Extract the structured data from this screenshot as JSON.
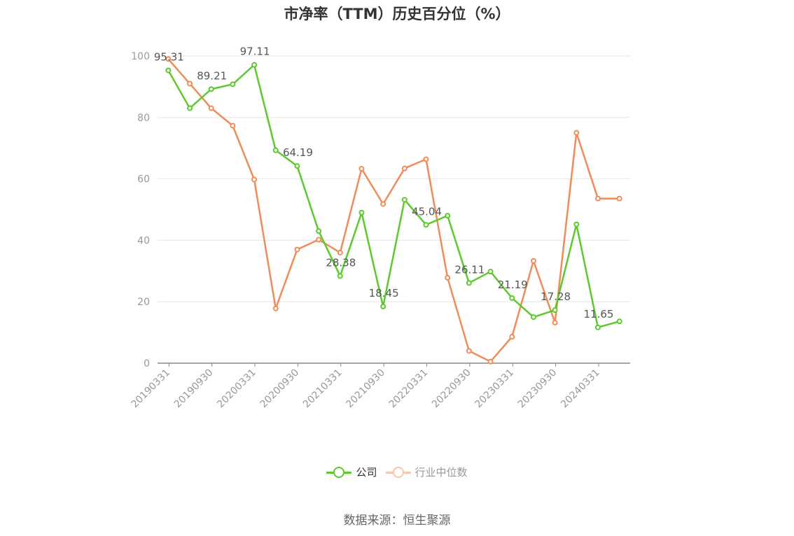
{
  "chart_data": {
    "type": "line",
    "title": "市净率（TTM）历史百分位（%）",
    "ylim": [
      0,
      100
    ],
    "yticks": [
      0,
      20,
      40,
      60,
      80,
      100
    ],
    "x": [
      "20190331",
      "20190630",
      "20190930",
      "20191231",
      "20200331",
      "20200630",
      "20200930",
      "20201231",
      "20210331",
      "20210630",
      "20210930",
      "20211231",
      "20220331",
      "20220630",
      "20220930",
      "20221231",
      "20230331",
      "20230630",
      "20230930",
      "20231231",
      "20240331",
      "20240630"
    ],
    "xtick_labels": [
      "20190331",
      "20190930",
      "20200331",
      "20200930",
      "20210331",
      "20210930",
      "20220331",
      "20220930",
      "20230331",
      "20230930",
      "20240331"
    ],
    "grid": true,
    "legend_position": "bottom",
    "series": [
      {
        "name": "公司",
        "color": "#5cc92c",
        "values": [
          95.31,
          83.0,
          89.21,
          90.8,
          97.11,
          69.3,
          64.19,
          43.0,
          28.38,
          49.0,
          18.45,
          53.2,
          45.04,
          48.0,
          26.11,
          29.8,
          21.19,
          15.0,
          17.28,
          45.2,
          11.65,
          13.6
        ],
        "labels": [
          "95.31",
          "",
          "89.21",
          "",
          "97.11",
          "",
          "64.19",
          "",
          "28.38",
          "",
          "18.45",
          "",
          "45.04",
          "",
          "26.11",
          "",
          "21.19",
          "",
          "17.28",
          "",
          "11.65",
          ""
        ]
      },
      {
        "name": "行业中位数",
        "color": "#f08c5a",
        "values": [
          99.0,
          91.0,
          83.0,
          77.3,
          59.8,
          17.8,
          37.0,
          40.2,
          36.0,
          63.3,
          51.8,
          63.4,
          66.4,
          27.8,
          4.0,
          0.5,
          8.6,
          33.3,
          13.2,
          75.0,
          53.6,
          53.6
        ]
      }
    ]
  },
  "source": "数据来源：恒生聚源"
}
